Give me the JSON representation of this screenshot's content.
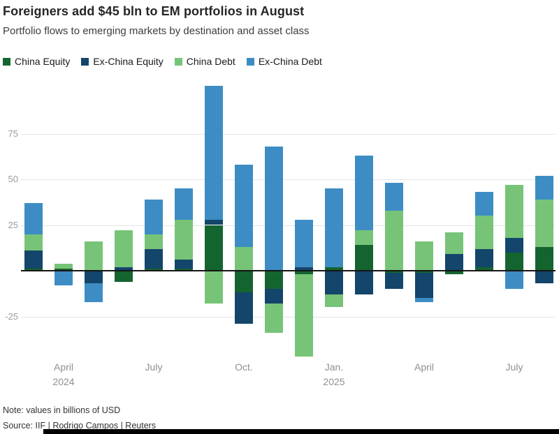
{
  "header": {
    "title": "Foreigners add $45 bln to EM portfolios in August",
    "subtitle": "Portfolio flows to emerging markets by destination and asset class"
  },
  "legend": [
    {
      "label": "China Equity",
      "color": "#14642f"
    },
    {
      "label": "Ex-China Equity",
      "color": "#14456b"
    },
    {
      "label": "China Debt",
      "color": "#77c478"
    },
    {
      "label": "Ex-China Debt",
      "color": "#3d8dc4"
    }
  ],
  "chart_data": {
    "type": "bar",
    "stacked": true,
    "x": [
      "Mar 2024",
      "Apr 2024",
      "May 2024",
      "Jun 2024",
      "Jul 2024",
      "Aug 2024",
      "Sep 2024",
      "Oct 2024",
      "Nov 2024",
      "Dec 2024",
      "Jan 2025",
      "Feb 2025",
      "Mar 2025",
      "Apr 2025",
      "May 2025",
      "Jun 2025",
      "Jul 2025",
      "Aug 2025"
    ],
    "series": [
      {
        "name": "China Equity",
        "color": "#14642f",
        "values": [
          1,
          1,
          0,
          -6,
          1,
          1,
          25,
          -12,
          -10,
          -2,
          2,
          14,
          -1,
          -1,
          -2,
          2,
          10,
          13
        ]
      },
      {
        "name": "Ex-China Equity",
        "color": "#14456b",
        "values": [
          10,
          0,
          -7,
          2,
          11,
          5,
          3,
          -17,
          -8,
          2,
          -13,
          -13,
          -9,
          -14,
          9,
          10,
          8,
          -7
        ]
      },
      {
        "name": "China Debt",
        "color": "#77c478",
        "values": [
          9,
          3,
          16,
          20,
          8,
          22,
          -18,
          13,
          -16,
          -45,
          -7,
          8,
          33,
          16,
          12,
          18,
          29,
          26
        ]
      },
      {
        "name": "Ex-China Debt",
        "color": "#3d8dc4",
        "values": [
          17,
          -8,
          -10,
          0,
          19,
          17,
          73,
          45,
          68,
          26,
          43,
          41,
          15,
          -2,
          0,
          13,
          -10,
          13
        ]
      }
    ],
    "y_ticks": [
      75,
      50,
      25,
      -25
    ],
    "x_ticks": [
      {
        "index": 1,
        "lines": [
          "April",
          "2024"
        ]
      },
      {
        "index": 4,
        "lines": [
          "July"
        ]
      },
      {
        "index": 7,
        "lines": [
          "Oct."
        ]
      },
      {
        "index": 10,
        "lines": [
          "Jan.",
          "2025"
        ]
      },
      {
        "index": 13,
        "lines": [
          "April"
        ]
      },
      {
        "index": 16,
        "lines": [
          "July"
        ]
      }
    ],
    "ylabel": "",
    "xlabel": "",
    "ylim": [
      -50,
      105
    ],
    "grid": true,
    "legend_position": "top"
  },
  "footer": {
    "note": "Note: values in billions of USD",
    "source": "Source: IIF | Rodrigo Campos | Reuters"
  }
}
